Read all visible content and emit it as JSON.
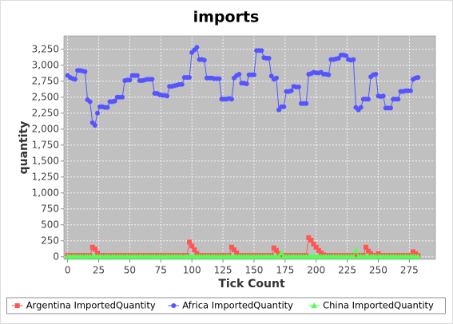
{
  "chart_data": {
    "type": "line",
    "title": "imports",
    "x_label": "Tick Count",
    "y_label": "quantity",
    "x": [
      0,
      2,
      4,
      6,
      8,
      10,
      12,
      14,
      16,
      18,
      20,
      22,
      24,
      26,
      28,
      30,
      32,
      34,
      36,
      38,
      40,
      42,
      44,
      46,
      48,
      50,
      52,
      54,
      56,
      58,
      60,
      62,
      64,
      66,
      68,
      70,
      72,
      74,
      76,
      78,
      80,
      82,
      84,
      86,
      88,
      90,
      92,
      94,
      96,
      98,
      100,
      102,
      104,
      106,
      108,
      110,
      112,
      114,
      116,
      118,
      120,
      122,
      124,
      126,
      128,
      130,
      132,
      134,
      136,
      138,
      140,
      142,
      144,
      146,
      148,
      150,
      152,
      154,
      156,
      158,
      160,
      162,
      164,
      166,
      168,
      170,
      172,
      174,
      176,
      178,
      180,
      182,
      184,
      186,
      188,
      190,
      192,
      194,
      196,
      198,
      200,
      202,
      204,
      206,
      208,
      210,
      212,
      214,
      216,
      218,
      220,
      222,
      224,
      226,
      228,
      230,
      232,
      234,
      236,
      238,
      240,
      242,
      244,
      246,
      248,
      250,
      252,
      254,
      256,
      258,
      260,
      262,
      264,
      266,
      268,
      270,
      272,
      274,
      276,
      278,
      280,
      282
    ],
    "series": [
      {
        "name": "Argentina ImportedQuantity",
        "color": "#ff5555",
        "marker": "square",
        "values": [
          20,
          20,
          20,
          20,
          20,
          20,
          20,
          20,
          20,
          20,
          150,
          120,
          60,
          20,
          20,
          20,
          20,
          20,
          20,
          20,
          20,
          20,
          20,
          20,
          20,
          20,
          20,
          20,
          20,
          20,
          20,
          20,
          20,
          20,
          20,
          20,
          20,
          20,
          20,
          20,
          20,
          20,
          20,
          20,
          20,
          20,
          20,
          20,
          20,
          230,
          170,
          110,
          50,
          20,
          20,
          20,
          20,
          20,
          20,
          20,
          20,
          20,
          20,
          20,
          20,
          20,
          150,
          110,
          60,
          20,
          20,
          20,
          20,
          20,
          20,
          20,
          20,
          20,
          20,
          20,
          20,
          20,
          20,
          140,
          100,
          50,
          20,
          20,
          20,
          20,
          20,
          20,
          20,
          20,
          20,
          20,
          20,
          300,
          260,
          200,
          150,
          100,
          60,
          30,
          20,
          20,
          20,
          20,
          20,
          20,
          20,
          20,
          20,
          20,
          20,
          20,
          20,
          20,
          20,
          20,
          150,
          90,
          50,
          20,
          20,
          50,
          20,
          20,
          20,
          20,
          20,
          20,
          20,
          20,
          20,
          20,
          20,
          20,
          20,
          80,
          50,
          20
        ]
      },
      {
        "name": "Africa ImportedQuantity",
        "color": "#5555ff",
        "marker": "circle",
        "values": [
          2840,
          2810,
          2790,
          2780,
          2920,
          2920,
          2910,
          2900,
          2460,
          2430,
          2100,
          2060,
          2250,
          2350,
          2350,
          2340,
          2340,
          2430,
          2430,
          2440,
          2500,
          2500,
          2500,
          2760,
          2770,
          2770,
          2840,
          2840,
          2840,
          2760,
          2760,
          2770,
          2780,
          2780,
          2780,
          2560,
          2560,
          2540,
          2530,
          2530,
          2520,
          2670,
          2670,
          2680,
          2690,
          2700,
          2700,
          2810,
          2810,
          2810,
          3200,
          3240,
          3280,
          3090,
          3090,
          3080,
          2800,
          2800,
          2800,
          2790,
          2790,
          2790,
          2470,
          2470,
          2470,
          2480,
          2470,
          2800,
          2840,
          2860,
          2720,
          2720,
          2710,
          2850,
          2850,
          2850,
          3230,
          3230,
          3230,
          3120,
          3110,
          3110,
          2830,
          2780,
          2800,
          2300,
          2350,
          2350,
          2590,
          2590,
          2600,
          2670,
          2660,
          2660,
          2400,
          2400,
          2400,
          2860,
          2870,
          2890,
          2880,
          2880,
          2890,
          2860,
          2860,
          2850,
          3090,
          3090,
          3100,
          3110,
          3160,
          3160,
          3150,
          3090,
          3080,
          3090,
          2340,
          2300,
          2340,
          2470,
          2470,
          2470,
          2820,
          2850,
          2860,
          2520,
          2510,
          2520,
          2330,
          2330,
          2330,
          2470,
          2470,
          2470,
          2590,
          2590,
          2600,
          2600,
          2600,
          2780,
          2800,
          2810
        ]
      },
      {
        "name": "China ImportedQuantity",
        "color": "#55ff55",
        "marker": "triangle",
        "values": [
          0,
          0,
          0,
          0,
          0,
          0,
          0,
          0,
          0,
          0,
          0,
          0,
          0,
          0,
          0,
          0,
          0,
          0,
          0,
          0,
          0,
          0,
          0,
          0,
          0,
          0,
          0,
          0,
          0,
          0,
          0,
          0,
          0,
          0,
          0,
          0,
          0,
          0,
          0,
          0,
          0,
          0,
          0,
          0,
          0,
          0,
          0,
          0,
          0,
          0,
          0,
          0,
          0,
          0,
          0,
          0,
          0,
          0,
          0,
          0,
          0,
          0,
          0,
          0,
          0,
          0,
          0,
          0,
          0,
          0,
          0,
          0,
          0,
          0,
          0,
          0,
          0,
          0,
          0,
          0,
          0,
          0,
          0,
          0,
          0,
          0,
          60,
          0,
          0,
          0,
          0,
          0,
          0,
          0,
          0,
          0,
          0,
          0,
          0,
          0,
          0,
          0,
          0,
          0,
          0,
          0,
          0,
          0,
          0,
          0,
          0,
          0,
          0,
          0,
          0,
          0,
          100,
          0,
          0,
          0,
          0,
          0,
          0,
          0,
          0,
          0,
          0,
          0,
          0,
          0,
          0,
          0,
          0,
          0,
          0,
          0,
          0,
          0,
          0,
          0,
          0,
          0
        ]
      }
    ],
    "xlim": [
      -3,
      296
    ],
    "xticks": [
      0,
      25,
      50,
      75,
      100,
      125,
      150,
      175,
      200,
      225,
      250,
      275
    ],
    "ylim": [
      -40,
      3460
    ],
    "yticks": [
      0,
      250,
      500,
      750,
      {
        "value": 1000,
        "label": "1,000"
      },
      {
        "value": 1250,
        "label": "1,250"
      },
      {
        "value": 1500,
        "label": "1,500"
      },
      {
        "value": 1750,
        "label": "1,750"
      },
      {
        "value": 2000,
        "label": "2,000"
      },
      {
        "value": 2250,
        "label": "2,250"
      },
      {
        "value": 2500,
        "label": "2,500"
      },
      {
        "value": 2750,
        "label": "2,750"
      },
      {
        "value": 3000,
        "label": "3,000"
      },
      {
        "value": 3250,
        "label": "3,250"
      }
    ],
    "grid": true,
    "legend": "bottom"
  }
}
